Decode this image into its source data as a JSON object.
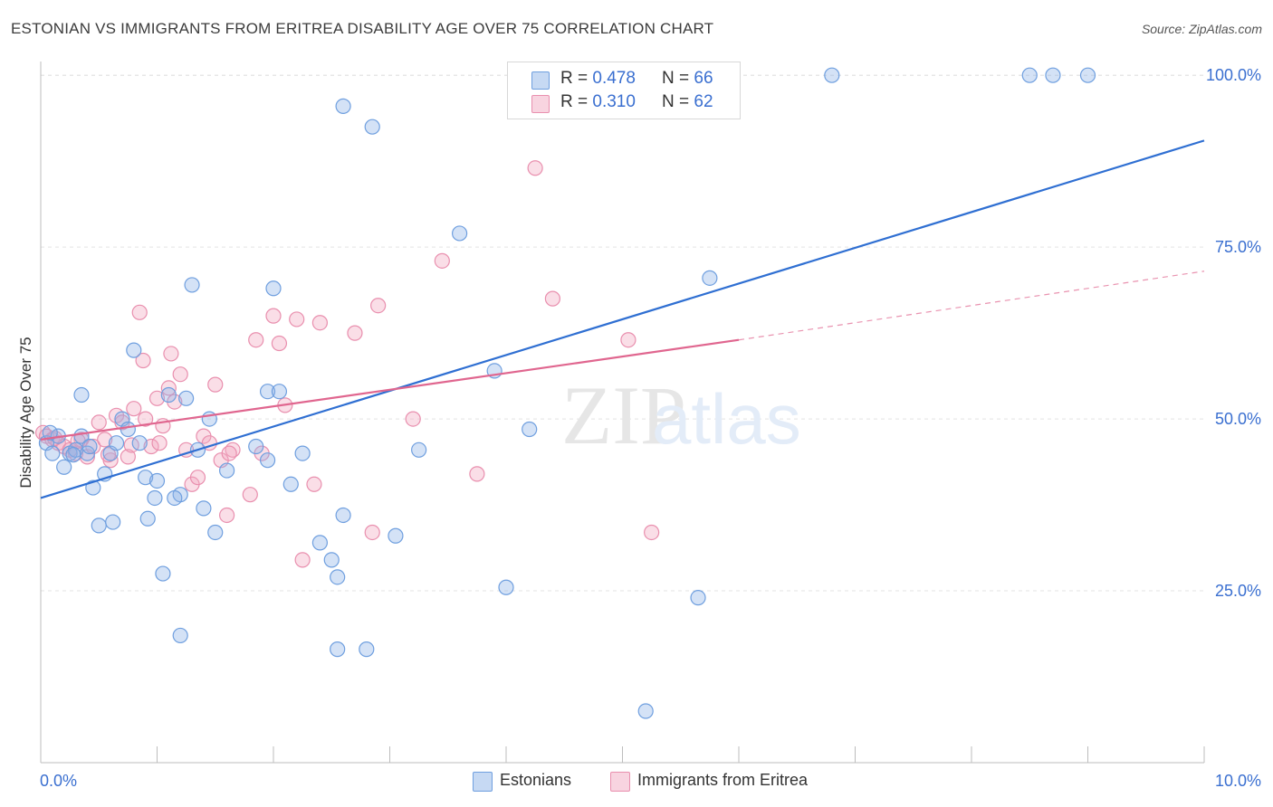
{
  "header": {
    "title": "ESTONIAN VS IMMIGRANTS FROM ERITREA DISABILITY AGE OVER 75 CORRELATION CHART",
    "source": "Source: ZipAtlas.com"
  },
  "watermark": {
    "zip": "ZIP",
    "atlas": "atlas"
  },
  "stats_legend": {
    "rows": [
      {
        "r_label": "R =",
        "r_value": "0.478",
        "n_label": "N =",
        "n_value": "66",
        "color": "#8db4e8"
      },
      {
        "r_label": "R =",
        "r_value": "0.310",
        "n_label": "N =",
        "n_value": "62",
        "color": "#f2a9c1"
      }
    ]
  },
  "bottom_legend": {
    "items": [
      {
        "label": "Estonians",
        "color": "#8db4e8"
      },
      {
        "label": "Immigrants from Eritrea",
        "color": "#f2a9c1"
      }
    ]
  },
  "colors": {
    "estonians_fill": "rgba(141,180,232,0.38)",
    "estonians_stroke": "#6f9fdf",
    "estonians_line": "#2f6fd2",
    "eritrea_fill": "rgba(242,169,193,0.38)",
    "eritrea_stroke": "#e98fae",
    "eritrea_line": "#e0668f",
    "tick_label": "#3a6fd0",
    "grid": "#e3e3e3"
  },
  "chart_data": {
    "type": "scatter",
    "title": "ESTONIAN VS IMMIGRANTS FROM ERITREA DISABILITY AGE OVER 75 CORRELATION CHART",
    "xlabel": "",
    "ylabel": "Disability Age Over 75",
    "xlim": [
      0,
      10
    ],
    "ylim": [
      0,
      102
    ],
    "x_tick_labels": [
      {
        "value": 0,
        "label": "0.0%"
      },
      {
        "value": 10,
        "label": "10.0%"
      }
    ],
    "y_tick_labels": [
      {
        "value": 100,
        "label": "100.0%"
      },
      {
        "value": 75,
        "label": "75.0%"
      },
      {
        "value": 50,
        "label": "50.0%"
      },
      {
        "value": 25,
        "label": "25.0%"
      }
    ],
    "y_gridlines": [
      100,
      75,
      50,
      25
    ],
    "x_minor_ticks": [
      1,
      2,
      3,
      4,
      5,
      6,
      7,
      8,
      9
    ],
    "grid": true,
    "legend_position": "top-center",
    "series": [
      {
        "name": "Estonians",
        "trend": {
          "x": [
            0,
            10
          ],
          "y": [
            38.5,
            90.5
          ],
          "dashed_extension_to": null
        },
        "points": [
          [
            0.05,
            46.5
          ],
          [
            0.1,
            45.0
          ],
          [
            0.2,
            43.0
          ],
          [
            0.25,
            45.0
          ],
          [
            0.3,
            45.5
          ],
          [
            0.35,
            47.5
          ],
          [
            0.4,
            45.0
          ],
          [
            0.35,
            53.5
          ],
          [
            0.45,
            40.0
          ],
          [
            0.55,
            42.0
          ],
          [
            0.5,
            34.5
          ],
          [
            0.6,
            45.0
          ],
          [
            0.65,
            46.5
          ],
          [
            0.7,
            50.0
          ],
          [
            0.75,
            48.5
          ],
          [
            0.8,
            60.0
          ],
          [
            0.85,
            46.5
          ],
          [
            0.9,
            41.5
          ],
          [
            0.92,
            35.5
          ],
          [
            0.98,
            38.5
          ],
          [
            1.0,
            41.0
          ],
          [
            1.05,
            27.5
          ],
          [
            1.1,
            53.5
          ],
          [
            1.2,
            39.0
          ],
          [
            1.15,
            38.5
          ],
          [
            1.2,
            18.5
          ],
          [
            1.3,
            69.5
          ],
          [
            1.35,
            45.5
          ],
          [
            1.4,
            37.0
          ],
          [
            1.45,
            50.0
          ],
          [
            1.5,
            33.5
          ],
          [
            1.6,
            42.5
          ],
          [
            1.85,
            46.0
          ],
          [
            1.95,
            44.0
          ],
          [
            1.95,
            54.0
          ],
          [
            2.0,
            69.0
          ],
          [
            2.05,
            54.0
          ],
          [
            2.15,
            40.5
          ],
          [
            2.25,
            45.0
          ],
          [
            2.4,
            32.0
          ],
          [
            2.5,
            29.5
          ],
          [
            2.55,
            27.0
          ],
          [
            2.55,
            16.5
          ],
          [
            2.6,
            36.0
          ],
          [
            2.6,
            95.5
          ],
          [
            2.8,
            16.5
          ],
          [
            2.85,
            92.5
          ],
          [
            3.05,
            33.0
          ],
          [
            3.25,
            45.5
          ],
          [
            3.6,
            77.0
          ],
          [
            3.9,
            57.0
          ],
          [
            4.0,
            25.5
          ],
          [
            4.2,
            48.5
          ],
          [
            5.2,
            7.5
          ],
          [
            5.65,
            24.0
          ],
          [
            5.75,
            70.5
          ],
          [
            6.8,
            100.0
          ],
          [
            8.5,
            100.0
          ],
          [
            8.7,
            100.0
          ],
          [
            9.0,
            100.0
          ],
          [
            0.15,
            47.5
          ],
          [
            0.28,
            44.8
          ],
          [
            1.25,
            53.0
          ],
          [
            0.62,
            35.0
          ],
          [
            0.08,
            48.0
          ],
          [
            0.42,
            46.0
          ]
        ]
      },
      {
        "name": "Immigrants from Eritrea",
        "trend": {
          "x": [
            0,
            6
          ],
          "y": [
            47.0,
            61.5
          ],
          "dashed_extension_to": {
            "x": 10,
            "y": 71.5
          }
        },
        "points": [
          [
            0.02,
            48.0
          ],
          [
            0.05,
            47.5
          ],
          [
            0.1,
            47.0
          ],
          [
            0.15,
            46.5
          ],
          [
            0.2,
            46.0
          ],
          [
            0.25,
            45.5
          ],
          [
            0.3,
            45.0
          ],
          [
            0.35,
            47.0
          ],
          [
            0.4,
            44.5
          ],
          [
            0.45,
            46.0
          ],
          [
            0.5,
            49.5
          ],
          [
            0.55,
            47.0
          ],
          [
            0.6,
            44.0
          ],
          [
            0.65,
            50.5
          ],
          [
            0.7,
            49.5
          ],
          [
            0.75,
            44.5
          ],
          [
            0.8,
            51.5
          ],
          [
            0.85,
            65.5
          ],
          [
            0.88,
            58.5
          ],
          [
            0.9,
            50.0
          ],
          [
            0.95,
            46.0
          ],
          [
            1.0,
            53.0
          ],
          [
            1.05,
            49.0
          ],
          [
            1.1,
            54.5
          ],
          [
            1.12,
            59.5
          ],
          [
            1.15,
            52.5
          ],
          [
            1.2,
            56.5
          ],
          [
            1.25,
            45.5
          ],
          [
            1.3,
            40.5
          ],
          [
            1.35,
            41.5
          ],
          [
            1.4,
            47.5
          ],
          [
            1.45,
            46.5
          ],
          [
            1.5,
            55.0
          ],
          [
            1.55,
            44.0
          ],
          [
            1.6,
            36.0
          ],
          [
            1.65,
            45.5
          ],
          [
            1.8,
            39.0
          ],
          [
            1.85,
            61.5
          ],
          [
            1.9,
            45.0
          ],
          [
            2.0,
            65.0
          ],
          [
            2.05,
            61.0
          ],
          [
            2.1,
            52.0
          ],
          [
            2.2,
            64.5
          ],
          [
            2.25,
            29.5
          ],
          [
            2.35,
            40.5
          ],
          [
            2.4,
            64.0
          ],
          [
            2.7,
            62.5
          ],
          [
            2.85,
            33.5
          ],
          [
            2.9,
            66.5
          ],
          [
            3.2,
            50.0
          ],
          [
            3.45,
            73.0
          ],
          [
            3.75,
            42.0
          ],
          [
            4.25,
            86.5
          ],
          [
            4.4,
            67.5
          ],
          [
            5.05,
            61.5
          ],
          [
            5.25,
            33.5
          ],
          [
            0.12,
            47.2
          ],
          [
            0.32,
            46.8
          ],
          [
            0.58,
            44.8
          ],
          [
            0.78,
            46.2
          ],
          [
            1.02,
            46.5
          ],
          [
            1.62,
            45.0
          ]
        ]
      }
    ]
  }
}
